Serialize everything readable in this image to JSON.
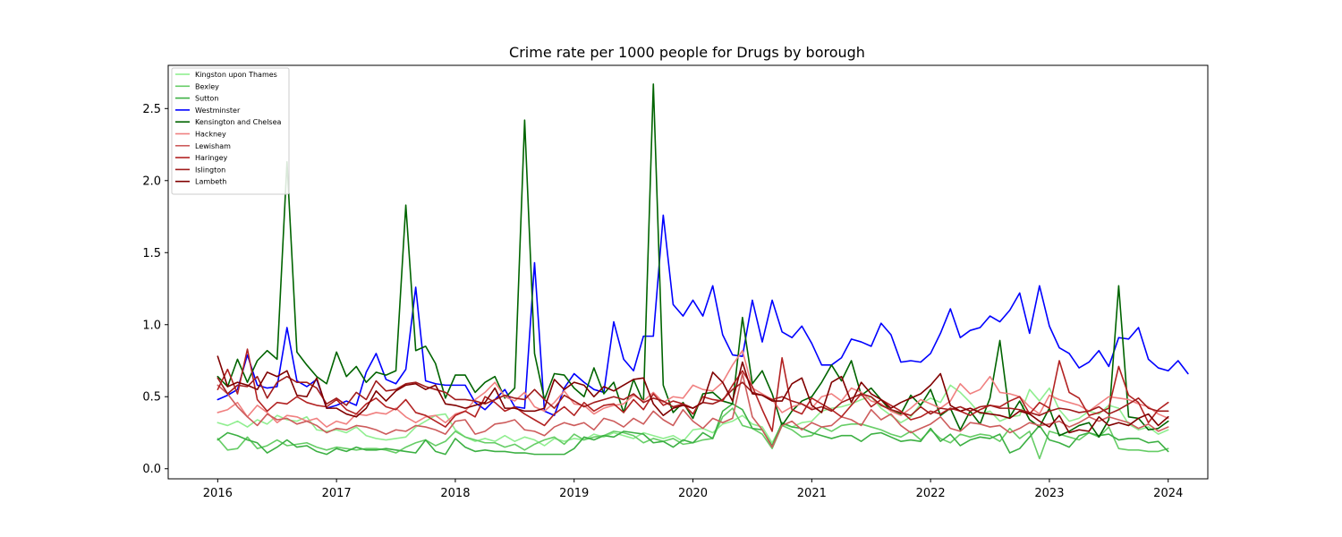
{
  "chart_data": {
    "type": "line",
    "title": "Crime rate per 1000 people for Drugs by borough",
    "xlabel": "",
    "ylabel": "",
    "x_start": "2016-01",
    "x_end": "2024-01",
    "xlim": [
      "2015-08",
      "2024-05"
    ],
    "ylim": [
      -0.07,
      2.8
    ],
    "xticks": [
      "2016",
      "2017",
      "2018",
      "2019",
      "2020",
      "2021",
      "2022",
      "2023",
      "2024"
    ],
    "yticks": [
      "0.0",
      "0.5",
      "1.0",
      "1.5",
      "2.0",
      "2.5"
    ],
    "grid": false,
    "legend_position": "upper left",
    "series": [
      {
        "name": "Kingston upon Thames",
        "color": "#90ee90",
        "values": [
          0.32,
          0.3,
          0.33,
          0.29,
          0.34,
          0.31,
          0.37,
          0.34,
          0.33,
          0.36,
          0.27,
          0.26,
          0.27,
          0.25,
          0.29,
          0.23,
          0.21,
          0.2,
          0.21,
          0.22,
          0.29,
          0.33,
          0.37,
          0.38,
          0.27,
          0.22,
          0.19,
          0.21,
          0.19,
          0.23,
          0.19,
          0.22,
          0.2,
          0.16,
          0.21,
          0.19,
          0.21,
          0.2,
          0.24,
          0.22,
          0.25,
          0.23,
          0.21,
          0.25,
          0.23,
          0.21,
          0.23,
          0.19,
          0.27,
          0.28,
          0.25,
          0.31,
          0.33,
          0.37,
          0.31,
          0.29,
          0.18,
          0.31,
          0.29,
          0.32,
          0.33,
          0.4,
          0.42,
          0.43,
          0.45,
          0.48,
          0.5,
          0.42,
          0.37,
          0.32,
          0.36,
          0.45,
          0.49,
          0.46,
          0.58,
          0.53,
          0.46,
          0.38,
          0.4,
          0.33,
          0.36,
          0.37,
          0.55,
          0.47,
          0.56,
          0.41,
          0.33,
          0.35,
          0.4,
          0.38,
          0.44,
          0.42,
          0.31,
          0.27,
          0.29,
          0.24,
          0.27
        ]
      },
      {
        "name": "Bexley",
        "color": "#66cd66",
        "values": [
          0.21,
          0.13,
          0.14,
          0.22,
          0.14,
          0.16,
          0.2,
          0.16,
          0.17,
          0.18,
          0.15,
          0.13,
          0.15,
          0.14,
          0.13,
          0.14,
          0.14,
          0.13,
          0.11,
          0.15,
          0.18,
          0.2,
          0.16,
          0.19,
          0.26,
          0.22,
          0.2,
          0.18,
          0.18,
          0.15,
          0.17,
          0.13,
          0.17,
          0.2,
          0.22,
          0.17,
          0.24,
          0.2,
          0.22,
          0.23,
          0.26,
          0.25,
          0.23,
          0.18,
          0.21,
          0.19,
          0.21,
          0.17,
          0.18,
          0.2,
          0.21,
          0.36,
          0.42,
          0.3,
          0.28,
          0.24,
          0.14,
          0.3,
          0.27,
          0.22,
          0.23,
          0.29,
          0.26,
          0.3,
          0.31,
          0.31,
          0.29,
          0.27,
          0.24,
          0.22,
          0.26,
          0.2,
          0.27,
          0.21,
          0.18,
          0.24,
          0.22,
          0.24,
          0.23,
          0.19,
          0.28,
          0.21,
          0.26,
          0.07,
          0.26,
          0.24,
          0.22,
          0.2,
          0.25,
          0.22,
          0.29,
          0.14,
          0.13,
          0.13,
          0.12,
          0.12,
          0.14
        ]
      },
      {
        "name": "Sutton",
        "color": "#3cb043",
        "values": [
          0.2,
          0.25,
          0.23,
          0.2,
          0.18,
          0.11,
          0.15,
          0.2,
          0.15,
          0.16,
          0.12,
          0.1,
          0.14,
          0.12,
          0.15,
          0.13,
          0.13,
          0.14,
          0.13,
          0.12,
          0.11,
          0.2,
          0.12,
          0.1,
          0.21,
          0.15,
          0.12,
          0.13,
          0.12,
          0.12,
          0.11,
          0.11,
          0.1,
          0.1,
          0.1,
          0.1,
          0.14,
          0.22,
          0.2,
          0.23,
          0.22,
          0.26,
          0.25,
          0.24,
          0.18,
          0.19,
          0.15,
          0.2,
          0.18,
          0.25,
          0.21,
          0.4,
          0.45,
          0.41,
          0.28,
          0.27,
          0.16,
          0.32,
          0.29,
          0.28,
          0.25,
          0.23,
          0.21,
          0.23,
          0.23,
          0.19,
          0.24,
          0.25,
          0.22,
          0.19,
          0.2,
          0.19,
          0.28,
          0.19,
          0.24,
          0.16,
          0.2,
          0.22,
          0.21,
          0.24,
          0.11,
          0.14,
          0.22,
          0.3,
          0.2,
          0.18,
          0.15,
          0.23,
          0.25,
          0.23,
          0.24,
          0.2,
          0.21,
          0.21,
          0.18,
          0.19,
          0.12
        ]
      },
      {
        "name": "Westminster",
        "color": "#0000ff",
        "values": [
          0.48,
          0.51,
          0.55,
          0.79,
          0.58,
          0.56,
          0.57,
          0.98,
          0.61,
          0.57,
          0.62,
          0.42,
          0.44,
          0.47,
          0.44,
          0.67,
          0.8,
          0.62,
          0.59,
          0.69,
          1.26,
          0.61,
          0.59,
          0.58,
          0.58,
          0.58,
          0.46,
          0.41,
          0.48,
          0.55,
          0.43,
          0.42,
          1.43,
          0.4,
          0.37,
          0.56,
          0.66,
          0.6,
          0.55,
          0.53,
          1.02,
          0.76,
          0.68,
          0.92,
          0.92,
          1.76,
          1.14,
          1.06,
          1.17,
          1.06,
          1.27,
          0.93,
          0.79,
          0.78,
          1.17,
          0.88,
          1.17,
          0.95,
          0.91,
          0.99,
          0.87,
          0.72,
          0.72,
          0.77,
          0.9,
          0.88,
          0.85,
          1.01,
          0.93,
          0.74,
          0.75,
          0.74,
          0.8,
          0.94,
          1.11,
          0.91,
          0.96,
          0.98,
          1.06,
          1.02,
          1.1,
          1.22,
          0.94,
          1.27,
          0.99,
          0.84,
          0.8,
          0.7,
          0.74,
          0.82,
          0.71,
          0.91,
          0.9,
          0.98,
          0.76,
          0.7,
          0.68,
          0.75,
          0.66
        ]
      },
      {
        "name": "Kensington and Chelsea",
        "color": "#006400",
        "values": [
          0.64,
          0.57,
          0.76,
          0.6,
          0.75,
          0.82,
          0.76,
          2.13,
          0.81,
          0.72,
          0.64,
          0.59,
          0.81,
          0.64,
          0.71,
          0.6,
          0.67,
          0.65,
          0.68,
          1.83,
          0.82,
          0.85,
          0.73,
          0.49,
          0.65,
          0.65,
          0.53,
          0.6,
          0.64,
          0.49,
          0.56,
          2.42,
          0.8,
          0.48,
          0.66,
          0.65,
          0.56,
          0.5,
          0.7,
          0.52,
          0.6,
          0.39,
          0.62,
          0.46,
          2.67,
          0.58,
          0.39,
          0.46,
          0.35,
          0.52,
          0.53,
          0.47,
          0.45,
          1.05,
          0.59,
          0.68,
          0.52,
          0.3,
          0.4,
          0.47,
          0.5,
          0.6,
          0.72,
          0.61,
          0.75,
          0.51,
          0.56,
          0.48,
          0.4,
          0.38,
          0.51,
          0.44,
          0.55,
          0.37,
          0.42,
          0.27,
          0.4,
          0.31,
          0.49,
          0.89,
          0.36,
          0.47,
          0.34,
          0.29,
          0.42,
          0.23,
          0.26,
          0.3,
          0.32,
          0.22,
          0.34,
          1.27,
          0.36,
          0.35,
          0.27,
          0.28,
          0.33
        ]
      },
      {
        "name": "Hackney",
        "color": "#f08080",
        "values": [
          0.39,
          0.41,
          0.46,
          0.36,
          0.44,
          0.39,
          0.32,
          0.37,
          0.36,
          0.33,
          0.35,
          0.29,
          0.33,
          0.31,
          0.38,
          0.37,
          0.39,
          0.38,
          0.42,
          0.36,
          0.32,
          0.36,
          0.37,
          0.32,
          0.38,
          0.4,
          0.48,
          0.53,
          0.6,
          0.5,
          0.47,
          0.53,
          0.43,
          0.4,
          0.46,
          0.54,
          0.45,
          0.44,
          0.38,
          0.42,
          0.44,
          0.45,
          0.51,
          0.47,
          0.53,
          0.46,
          0.5,
          0.49,
          0.58,
          0.55,
          0.54,
          0.6,
          0.72,
          0.82,
          0.56,
          0.52,
          0.48,
          0.39,
          0.43,
          0.45,
          0.42,
          0.5,
          0.52,
          0.47,
          0.56,
          0.53,
          0.47,
          0.45,
          0.4,
          0.37,
          0.42,
          0.48,
          0.45,
          0.42,
          0.47,
          0.59,
          0.52,
          0.55,
          0.64,
          0.53,
          0.52,
          0.5,
          0.43,
          0.38,
          0.51,
          0.48,
          0.46,
          0.44,
          0.4,
          0.45,
          0.5,
          0.49,
          0.48,
          0.45,
          0.43,
          0.38,
          0.35
        ]
      },
      {
        "name": "Lewisham",
        "color": "#cd5c5c",
        "values": [
          0.58,
          0.52,
          0.43,
          0.36,
          0.3,
          0.38,
          0.34,
          0.35,
          0.31,
          0.33,
          0.3,
          0.25,
          0.28,
          0.27,
          0.3,
          0.29,
          0.27,
          0.24,
          0.27,
          0.26,
          0.3,
          0.29,
          0.27,
          0.24,
          0.33,
          0.34,
          0.24,
          0.26,
          0.31,
          0.32,
          0.34,
          0.27,
          0.26,
          0.23,
          0.29,
          0.32,
          0.3,
          0.32,
          0.27,
          0.35,
          0.33,
          0.29,
          0.35,
          0.31,
          0.4,
          0.34,
          0.3,
          0.41,
          0.33,
          0.28,
          0.35,
          0.32,
          0.35,
          0.66,
          0.36,
          0.27,
          0.15,
          0.3,
          0.33,
          0.27,
          0.32,
          0.29,
          0.3,
          0.36,
          0.34,
          0.3,
          0.41,
          0.34,
          0.38,
          0.3,
          0.25,
          0.28,
          0.31,
          0.36,
          0.28,
          0.26,
          0.32,
          0.31,
          0.29,
          0.3,
          0.25,
          0.28,
          0.32,
          0.3,
          0.31,
          0.33,
          0.29,
          0.32,
          0.36,
          0.33,
          0.36,
          0.34,
          0.32,
          0.28,
          0.31,
          0.26,
          0.29
        ]
      },
      {
        "name": "Haringey",
        "color": "#b22222",
        "values": [
          0.55,
          0.69,
          0.52,
          0.83,
          0.48,
          0.4,
          0.46,
          0.45,
          0.5,
          0.46,
          0.44,
          0.43,
          0.48,
          0.41,
          0.38,
          0.45,
          0.49,
          0.43,
          0.41,
          0.48,
          0.39,
          0.37,
          0.33,
          0.29,
          0.37,
          0.4,
          0.36,
          0.5,
          0.46,
          0.4,
          0.43,
          0.38,
          0.34,
          0.3,
          0.38,
          0.43,
          0.37,
          0.46,
          0.4,
          0.44,
          0.45,
          0.39,
          0.48,
          0.41,
          0.52,
          0.44,
          0.47,
          0.45,
          0.38,
          0.5,
          0.48,
          0.47,
          0.58,
          0.68,
          0.57,
          0.41,
          0.26,
          0.77,
          0.41,
          0.38,
          0.49,
          0.45,
          0.41,
          0.36,
          0.44,
          0.52,
          0.43,
          0.48,
          0.44,
          0.4,
          0.34,
          0.36,
          0.4,
          0.38,
          0.42,
          0.4,
          0.37,
          0.41,
          0.44,
          0.43,
          0.47,
          0.5,
          0.38,
          0.46,
          0.42,
          0.75,
          0.53,
          0.49,
          0.37,
          0.39,
          0.42,
          0.71,
          0.51,
          0.46,
          0.32,
          0.41,
          0.46
        ]
      },
      {
        "name": "Islington",
        "color": "#a01c1c",
        "values": [
          0.63,
          0.52,
          0.58,
          0.57,
          0.64,
          0.49,
          0.6,
          0.64,
          0.6,
          0.6,
          0.56,
          0.45,
          0.49,
          0.44,
          0.53,
          0.48,
          0.61,
          0.54,
          0.55,
          0.59,
          0.6,
          0.57,
          0.55,
          0.53,
          0.48,
          0.48,
          0.47,
          0.45,
          0.48,
          0.51,
          0.49,
          0.48,
          0.55,
          0.48,
          0.42,
          0.51,
          0.47,
          0.43,
          0.46,
          0.48,
          0.5,
          0.48,
          0.52,
          0.46,
          0.49,
          0.47,
          0.43,
          0.45,
          0.42,
          0.46,
          0.45,
          0.48,
          0.55,
          0.6,
          0.53,
          0.51,
          0.48,
          0.5,
          0.47,
          0.45,
          0.41,
          0.43,
          0.4,
          0.46,
          0.49,
          0.52,
          0.5,
          0.44,
          0.41,
          0.39,
          0.37,
          0.43,
          0.38,
          0.42,
          0.41,
          0.43,
          0.4,
          0.43,
          0.44,
          0.42,
          0.42,
          0.41,
          0.39,
          0.37,
          0.4,
          0.42,
          0.41,
          0.39,
          0.4,
          0.43,
          0.38,
          0.41,
          0.45,
          0.49,
          0.42,
          0.4,
          0.4
        ]
      },
      {
        "name": "Lambeth",
        "color": "#800000",
        "values": [
          0.78,
          0.57,
          0.6,
          0.58,
          0.55,
          0.67,
          0.64,
          0.68,
          0.51,
          0.5,
          0.63,
          0.42,
          0.42,
          0.38,
          0.36,
          0.42,
          0.54,
          0.47,
          0.54,
          0.58,
          0.59,
          0.55,
          0.58,
          0.45,
          0.44,
          0.42,
          0.44,
          0.46,
          0.56,
          0.42,
          0.42,
          0.4,
          0.4,
          0.42,
          0.62,
          0.55,
          0.6,
          0.58,
          0.5,
          0.57,
          0.54,
          0.58,
          0.62,
          0.63,
          0.45,
          0.37,
          0.42,
          0.44,
          0.42,
          0.46,
          0.67,
          0.6,
          0.47,
          0.74,
          0.52,
          0.51,
          0.47,
          0.47,
          0.59,
          0.63,
          0.44,
          0.39,
          0.6,
          0.64,
          0.46,
          0.6,
          0.52,
          0.48,
          0.42,
          0.46,
          0.49,
          0.52,
          0.58,
          0.66,
          0.44,
          0.4,
          0.42,
          0.39,
          0.38,
          0.37,
          0.35,
          0.4,
          0.38,
          0.33,
          0.29,
          0.37,
          0.25,
          0.27,
          0.26,
          0.36,
          0.3,
          0.32,
          0.3,
          0.35,
          0.38,
          0.3,
          0.36
        ]
      }
    ]
  }
}
